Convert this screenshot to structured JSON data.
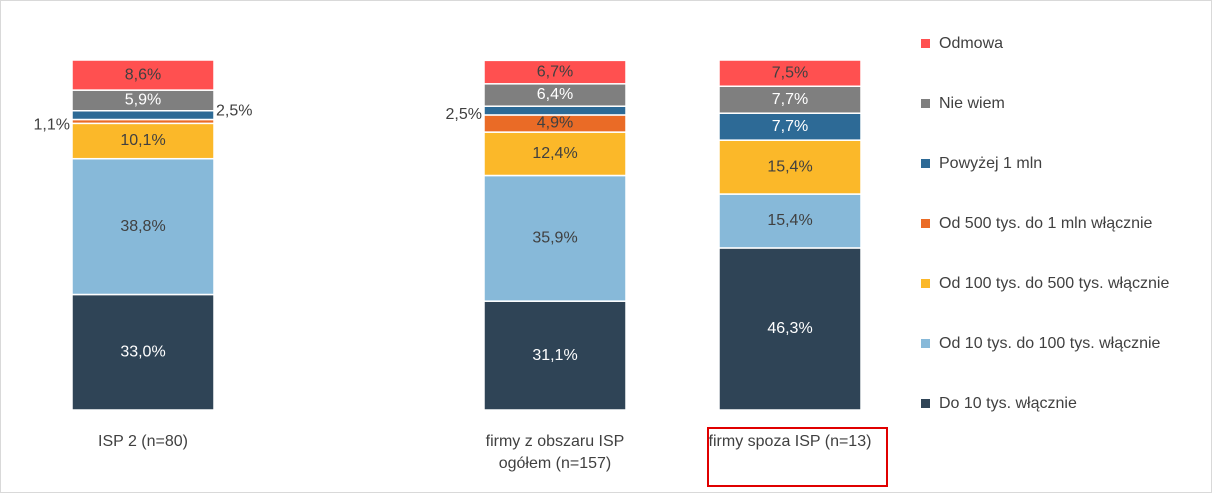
{
  "chart_data": {
    "type": "stacked_bar",
    "categories": [
      "ISP 2 (n=80)",
      "firmy z obszaru ISP ogółem (n=157)",
      "firmy spoza ISP (n=13)"
    ],
    "ylim": [
      0,
      100
    ],
    "series": [
      {
        "name": "Do 10 tys. włącznie",
        "color": "#2f4456",
        "label_color": "#ffffff",
        "values": [
          33.0,
          31.1,
          46.3
        ],
        "value_labels": [
          "33,0%",
          "31,1%",
          "46,3%"
        ]
      },
      {
        "name": "Od 10 tys. do 100 tys. włącznie",
        "color": "#87b9d9",
        "label_color": "#404040",
        "values": [
          38.8,
          35.9,
          15.4
        ],
        "value_labels": [
          "38,8%",
          "35,9%",
          "15,4%"
        ]
      },
      {
        "name": "Od 100 tys. do 500 tys. włącznie",
        "color": "#fbb829",
        "label_color": "#404040",
        "values": [
          10.1,
          12.4,
          15.4
        ],
        "value_labels": [
          "10,1%",
          "12,4%",
          "15,4%"
        ]
      },
      {
        "name": "Od 500 tys. do 1 mln włącznie",
        "color": "#ea6b26",
        "label_color": "#404040",
        "values": [
          1.1,
          4.9,
          null
        ],
        "value_labels": [
          "1,1%",
          "4,9%",
          null
        ]
      },
      {
        "name": "Powyżej 1 mln",
        "color": "#2d6a96",
        "label_color": "#ffffff",
        "values": [
          2.5,
          2.5,
          7.7
        ],
        "value_labels": [
          "2,5%",
          "2,5%",
          "7,7%"
        ]
      },
      {
        "name": "Nie wiem",
        "color": "#7f7f7f",
        "label_color": "#ffffff",
        "values": [
          5.9,
          6.4,
          7.7
        ],
        "value_labels": [
          "5,9%",
          "6,4%",
          "7,7%"
        ]
      },
      {
        "name": "Odmowa",
        "color": "#ff5050",
        "label_color": "#404040",
        "values": [
          8.6,
          6.7,
          7.5
        ],
        "value_labels": [
          "8,6%",
          "6,7%",
          "7,5%"
        ]
      }
    ]
  }
}
